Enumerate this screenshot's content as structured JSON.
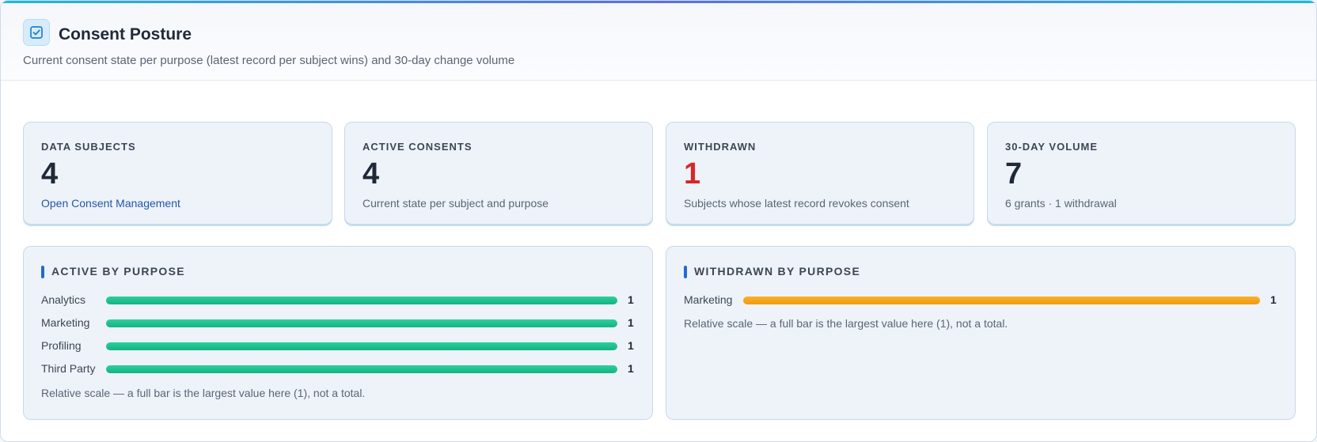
{
  "header": {
    "icon": "checkbox-icon",
    "title": "Consent Posture",
    "subtitle": "Current consent state per purpose (latest record per subject wins) and 30-day change volume"
  },
  "cards": [
    {
      "label": "DATA SUBJECTS",
      "value": "4",
      "desc": "Open Consent Management"
    },
    {
      "label": "ACTIVE CONSENTS",
      "value": "4",
      "desc": "Current state per subject and purpose"
    },
    {
      "label": "WITHDRAWN",
      "value": "1",
      "desc": "Subjects whose latest record revokes consent",
      "value_color": "#d62828"
    },
    {
      "label": "30-DAY VOLUME",
      "value": "7",
      "desc": "6 grants · 1 withdrawal"
    }
  ],
  "active_by_purpose": {
    "heading": "ACTIVE BY PURPOSE",
    "rows": [
      {
        "label": "Analytics",
        "value": "1",
        "fraction": 1.0
      },
      {
        "label": "Marketing",
        "value": "1",
        "fraction": 1.0
      },
      {
        "label": "Profiling",
        "value": "1",
        "fraction": 1.0
      },
      {
        "label": "Third Party",
        "value": "1",
        "fraction": 1.0
      }
    ],
    "bar_color": "#15b381",
    "note": "Relative scale — a full bar is the largest value here (1), not a total."
  },
  "withdrawn_by_purpose": {
    "heading": "WITHDRAWN BY PURPOSE",
    "rows": [
      {
        "label": "Marketing",
        "value": "1",
        "fraction": 1.0
      }
    ],
    "bar_color": "#f19b0f",
    "note": "Relative scale — a full bar is the largest value here (1), not a total."
  },
  "colors": {
    "accent": "#1e6ec8",
    "withdrawn": "#d62828",
    "link": "#2456a6"
  }
}
